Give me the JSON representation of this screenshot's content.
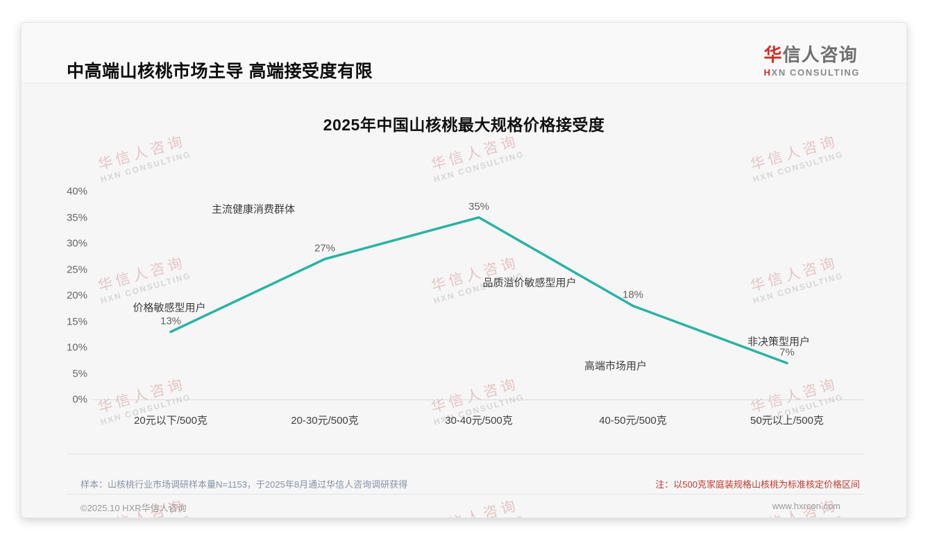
{
  "header": {
    "title": "中高端山核桃市场主导 高端接受度有限",
    "logo": {
      "cn_accent": "华",
      "cn_rest": "信人咨询",
      "en_accent": "H",
      "en_rest": "XN CONSULTING"
    }
  },
  "watermark": {
    "cn": "华信人咨询",
    "en": "HXN CONSULTING"
  },
  "chart_data": {
    "type": "line",
    "title": "2025年中国山核桃最大规格价格接受度",
    "categories": [
      "20元以下/500克",
      "20-30元/500克",
      "30-40元/500克",
      "40-50元/500克",
      "50元以上/500克"
    ],
    "values": [
      13,
      27,
      35,
      18,
      7
    ],
    "value_labels": [
      "13%",
      "27%",
      "35%",
      "18%",
      "7%"
    ],
    "annotations": [
      "价格敏感型用户",
      "主流健康消费群体",
      "品质溢价敏感型用户",
      "高端市场用户",
      "非决策型用户"
    ],
    "xlabel": "",
    "ylabel": "",
    "y_ticks": [
      "40%",
      "35%",
      "30%",
      "25%",
      "20%",
      "15%",
      "10%",
      "5%",
      "0%"
    ],
    "ylim": [
      0,
      40
    ],
    "y_tick_step": 5,
    "line_color": "#29b3a4",
    "grid": false,
    "legend": "none"
  },
  "footer": {
    "sample_note": "样本：山核桃行业市场调研样本量N=1153，于2025年8月通过华信人咨询调研获得",
    "price_note": "注：以500克家庭装规格山核桃为标准核定价格区间",
    "copyright": "©2025.10 HXR华信人咨询",
    "website": "www.hxrcon.com"
  }
}
